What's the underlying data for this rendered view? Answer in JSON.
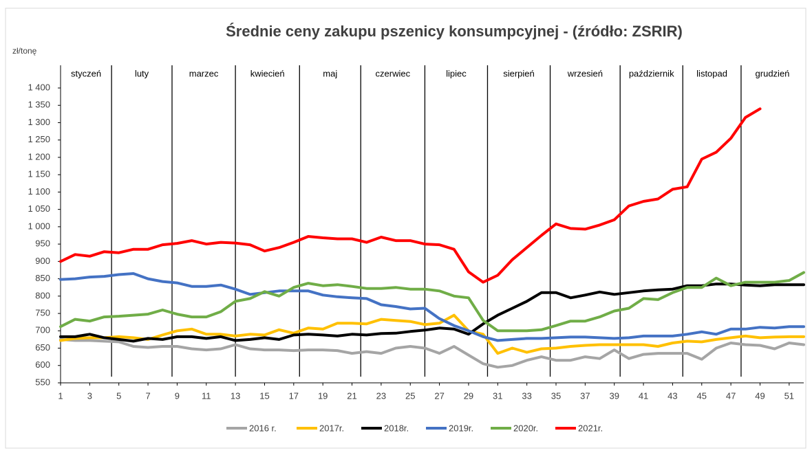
{
  "chart_data": {
    "type": "line",
    "title": "Średnie ceny zakupu pszenicy konsumpcyjnej - (źródło: ZSRIR)",
    "y_label": "zł/tonę",
    "x": [
      1,
      2,
      3,
      4,
      5,
      6,
      7,
      8,
      9,
      10,
      11,
      12,
      13,
      14,
      15,
      16,
      17,
      18,
      19,
      20,
      21,
      22,
      23,
      24,
      25,
      26,
      27,
      28,
      29,
      30,
      31,
      32,
      33,
      34,
      35,
      36,
      37,
      38,
      39,
      40,
      41,
      42,
      43,
      44,
      45,
      46,
      47,
      48,
      49,
      50,
      51,
      52
    ],
    "xlim": [
      1,
      52
    ],
    "xticks": [
      1,
      3,
      5,
      7,
      9,
      11,
      13,
      15,
      17,
      19,
      21,
      23,
      25,
      27,
      29,
      31,
      33,
      35,
      37,
      39,
      41,
      43,
      45,
      47,
      49,
      51
    ],
    "ylim": [
      550,
      1400
    ],
    "yticks": [
      550,
      600,
      650,
      700,
      750,
      800,
      850,
      900,
      950,
      {
        "value": 1000,
        "label": "1 000"
      },
      {
        "value": 1050,
        "label": "1 050"
      },
      {
        "value": 1100,
        "label": "1 100"
      },
      {
        "value": 1150,
        "label": "1 150"
      },
      {
        "value": 1200,
        "label": "1 200"
      },
      {
        "value": 1250,
        "label": "1 250"
      },
      {
        "value": 1300,
        "label": "1 300"
      },
      {
        "value": 1350,
        "label": "1 350"
      },
      {
        "value": 1400,
        "label": "1 400"
      }
    ],
    "months": [
      "styczeń",
      "luty",
      "marzec",
      "kwiecień",
      "maj",
      "czerwiec",
      "lipiec",
      "sierpień",
      "wrzesień",
      "październik",
      "listopad",
      "grudzień"
    ],
    "month_dividers": [
      4.5,
      8.65,
      13,
      17.4,
      21.6,
      26,
      30.3,
      34.6,
      39.4,
      43.7,
      47.7
    ],
    "legend": "bottom",
    "series": [
      {
        "name": "2016 r.",
        "color": "#a5a5a5",
        "values": [
          675,
          672,
          672,
          670,
          668,
          655,
          652,
          655,
          655,
          648,
          645,
          648,
          660,
          648,
          645,
          645,
          643,
          645,
          645,
          643,
          635,
          640,
          635,
          650,
          655,
          650,
          635,
          655,
          630,
          605,
          595,
          600,
          615,
          625,
          615,
          615,
          625,
          620,
          645,
          620,
          632,
          635,
          635,
          635,
          618,
          650,
          665,
          660,
          658,
          648,
          665,
          660
        ]
      },
      {
        "name": "2017r.",
        "color": "#ffc000",
        "values": [
          672,
          678,
          680,
          680,
          683,
          680,
          675,
          688,
          700,
          705,
          690,
          690,
          685,
          690,
          688,
          703,
          693,
          708,
          705,
          722,
          722,
          720,
          733,
          730,
          727,
          718,
          722,
          745,
          700,
          690,
          635,
          650,
          638,
          648,
          650,
          655,
          658,
          660,
          660,
          660,
          660,
          655,
          665,
          670,
          668,
          675,
          680,
          685,
          680,
          682,
          683,
          683
        ]
      },
      {
        "name": "2018r.",
        "color": "#000000",
        "values": [
          683,
          683,
          690,
          680,
          675,
          670,
          678,
          675,
          683,
          683,
          678,
          683,
          672,
          675,
          680,
          675,
          688,
          690,
          688,
          685,
          690,
          688,
          692,
          693,
          698,
          702,
          708,
          705,
          690,
          720,
          745,
          765,
          785,
          810,
          810,
          795,
          803,
          812,
          805,
          810,
          815,
          818,
          820,
          830,
          830,
          835,
          835,
          832,
          830,
          833,
          833,
          833
        ]
      },
      {
        "name": "2019r.",
        "color": "#4472c4",
        "values": [
          848,
          850,
          855,
          857,
          862,
          865,
          850,
          842,
          838,
          828,
          828,
          832,
          820,
          805,
          810,
          815,
          815,
          815,
          803,
          798,
          795,
          793,
          775,
          770,
          763,
          765,
          735,
          715,
          700,
          683,
          672,
          675,
          678,
          678,
          680,
          682,
          682,
          680,
          678,
          680,
          685,
          685,
          685,
          690,
          697,
          690,
          705,
          705,
          710,
          708,
          712,
          712
        ]
      },
      {
        "name": "2020r.",
        "color": "#70ad47",
        "values": [
          712,
          733,
          728,
          740,
          742,
          745,
          748,
          760,
          748,
          740,
          740,
          755,
          785,
          793,
          813,
          800,
          825,
          837,
          830,
          833,
          828,
          822,
          822,
          825,
          820,
          820,
          815,
          800,
          795,
          730,
          700,
          700,
          700,
          703,
          715,
          728,
          728,
          740,
          757,
          765,
          793,
          790,
          810,
          825,
          825,
          852,
          830,
          840,
          840,
          840,
          845,
          868
        ]
      },
      {
        "name": "2021r.",
        "color": "#ff0000",
        "values": [
          900,
          920,
          915,
          928,
          925,
          935,
          935,
          948,
          952,
          960,
          950,
          955,
          953,
          948,
          930,
          940,
          955,
          972,
          968,
          965,
          965,
          955,
          970,
          960,
          960,
          950,
          948,
          935,
          870,
          840,
          860,
          905,
          940,
          975,
          1008,
          995,
          993,
          1005,
          1020,
          1060,
          1073,
          1080,
          1108,
          1115,
          1195,
          1215,
          1255,
          1315,
          1340,
          null,
          null,
          null
        ]
      }
    ]
  }
}
